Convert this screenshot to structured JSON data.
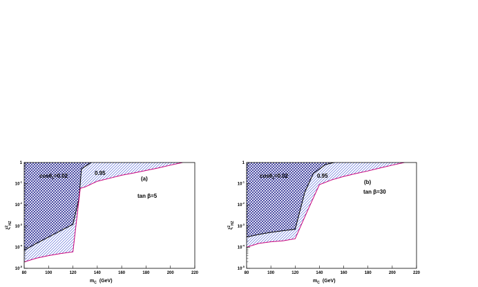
{
  "chart_data": [
    {
      "type": "area",
      "panel_label": "(a)",
      "xlabel_main": "m",
      "xlabel_sub": "C",
      "xlabel_unit": "(GeV)",
      "ylabel": "ξ",
      "ylabel_sup": "2",
      "ylabel_sub": "HZ",
      "xlim": [
        80,
        220
      ],
      "xticks": [
        "80",
        "100",
        "120",
        "140",
        "160",
        "180",
        "200",
        "220"
      ],
      "ylim_log10": [
        -5,
        0
      ],
      "yscale": "log",
      "yticks": [
        "10^-5",
        "10^-4",
        "10^-3",
        "10^-2",
        "10^-1",
        "1"
      ],
      "annotations": {
        "cos_text": "cosθ",
        "cos_sub": "1",
        "cos_val": "=0.02",
        "contour_label": "0.95",
        "tanb": "tan β=5"
      },
      "series": [
        {
          "fill": "crosshatch",
          "color": "#1a1a8a",
          "x": [
            80,
            90,
            100,
            110,
            120,
            125,
            127,
            135
          ],
          "y": [
            7e-05,
            0.00015,
            0.0003,
            0.0006,
            0.0012,
            0.02,
            0.5,
            1
          ]
        },
        {
          "fill": "diagonal-hatch",
          "color": "#c8007a",
          "x": [
            80,
            90,
            100,
            110,
            120,
            126,
            130,
            140,
            150,
            160,
            170,
            180,
            190,
            200,
            210
          ],
          "y": [
            2e-05,
            3e-05,
            4e-05,
            5e-05,
            6e-05,
            0.06,
            0.07,
            0.13,
            0.18,
            0.25,
            0.32,
            0.42,
            0.55,
            0.75,
            1
          ]
        }
      ]
    },
    {
      "type": "area",
      "panel_label": "(b)",
      "xlabel_main": "m",
      "xlabel_sub": "C",
      "xlabel_unit": "(GeV)",
      "ylabel": "ξ",
      "ylabel_sup": "2",
      "ylabel_sub": "HZ",
      "xlim": [
        80,
        220
      ],
      "xticks": [
        "80",
        "100",
        "120",
        "140",
        "160",
        "180",
        "200",
        "220"
      ],
      "ylim_log10": [
        -5,
        0
      ],
      "yscale": "log",
      "yticks": [
        "10^-5",
        "10^-4",
        "10^-3",
        "10^-2",
        "10^-1",
        "1"
      ],
      "annotations": {
        "cos_text": "cosθ",
        "cos_sub": "1",
        "cos_val": "=0.02",
        "contour_label": "0.95",
        "tanb": "tan β=30"
      },
      "series": [
        {
          "fill": "crosshatch",
          "color": "#1a1a8a",
          "x": [
            80,
            90,
            100,
            110,
            120,
            128,
            135,
            145,
            152
          ],
          "y": [
            0.0003,
            0.0004,
            0.0005,
            0.0006,
            0.0007,
            0.04,
            0.3,
            0.8,
            1
          ]
        },
        {
          "fill": "diagonal-hatch",
          "color": "#c8007a",
          "x": [
            80,
            90,
            100,
            110,
            120,
            130,
            140,
            150,
            160,
            170,
            180,
            190,
            200,
            210
          ],
          "y": [
            0.0001,
            0.00015,
            0.00018,
            0.0002,
            0.00025,
            0.005,
            0.09,
            0.15,
            0.22,
            0.3,
            0.4,
            0.55,
            0.75,
            1
          ]
        }
      ]
    }
  ]
}
